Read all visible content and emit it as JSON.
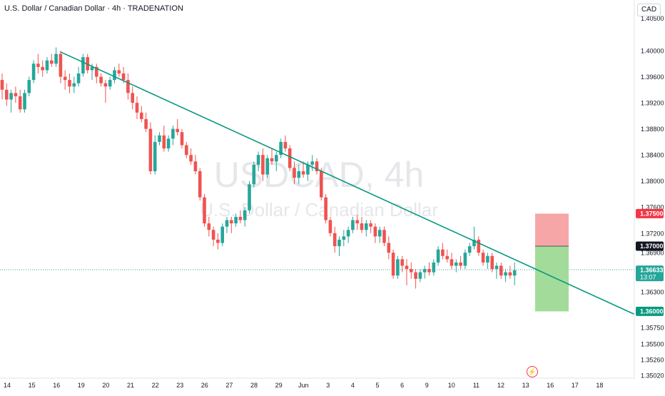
{
  "header": {
    "title": "U.S. Dollar / Canadian Dollar · 4h · TRADENATION"
  },
  "currency_button": "CAD",
  "watermark": {
    "symbol": "USDCAD, 4h",
    "name": "U.S. Dollar / Canadian Dollar"
  },
  "icons": {
    "lightning": "lightning-icon"
  },
  "colors": {
    "up": "#26a69a",
    "down": "#ef5350",
    "trendline": "#089981",
    "stop_zone": "#f7a6a8",
    "target_zone": "#a3dc9a",
    "price_badge": "#26a69a"
  },
  "price_axis": {
    "ticks": [
      "1.40500",
      "1.40000",
      "1.39600",
      "1.39200",
      "1.38800",
      "1.38400",
      "1.38000",
      "1.37600",
      "1.37200",
      "1.36900",
      "1.36300",
      "1.35750",
      "1.35500",
      "1.35260",
      "1.35020"
    ],
    "badges": [
      {
        "label": "1.37500",
        "sub": "",
        "kind": "stop"
      },
      {
        "label": "1.37000",
        "sub": "",
        "kind": "entry"
      },
      {
        "label": "1.36633",
        "sub": "13:07",
        "kind": "current"
      },
      {
        "label": "1.36000",
        "sub": "",
        "kind": "target"
      }
    ]
  },
  "time_axis": {
    "labels": [
      "14",
      "15",
      "16",
      "19",
      "20",
      "21",
      "22",
      "23",
      "26",
      "27",
      "28",
      "29",
      "Jun",
      "3",
      "4",
      "5",
      "6",
      "9",
      "10",
      "11",
      "12",
      "13",
      "16",
      "17",
      "18"
    ]
  },
  "chart_data": {
    "type": "candlestick",
    "title": "U.S. Dollar / Canadian Dollar · 4h · TRADENATION",
    "xlabel": "",
    "ylabel": "",
    "ylim": [
      1.3502,
      1.4065
    ],
    "grid": false,
    "candles_ohlc": [
      [
        1.3955,
        1.3965,
        1.3925,
        1.394
      ],
      [
        1.394,
        1.395,
        1.3915,
        1.3925
      ],
      [
        1.3925,
        1.394,
        1.3905,
        1.3935
      ],
      [
        1.3935,
        1.3945,
        1.392,
        1.393
      ],
      [
        1.393,
        1.394,
        1.3905,
        1.391
      ],
      [
        1.391,
        1.394,
        1.3905,
        1.3935
      ],
      [
        1.3935,
        1.396,
        1.393,
        1.3955
      ],
      [
        1.3955,
        1.3985,
        1.395,
        1.398
      ],
      [
        1.398,
        1.3995,
        1.3965,
        1.3975
      ],
      [
        1.3975,
        1.3985,
        1.396,
        1.397
      ],
      [
        1.397,
        1.399,
        1.3965,
        1.3985
      ],
      [
        1.3985,
        1.3995,
        1.3975,
        1.398
      ],
      [
        1.398,
        1.4005,
        1.3975,
        1.3995
      ],
      [
        1.3995,
        1.4,
        1.395,
        1.396
      ],
      [
        1.396,
        1.397,
        1.394,
        1.3955
      ],
      [
        1.3955,
        1.3965,
        1.3935,
        1.3945
      ],
      [
        1.3945,
        1.396,
        1.3935,
        1.395
      ],
      [
        1.395,
        1.3975,
        1.3945,
        1.3965
      ],
      [
        1.3965,
        1.3995,
        1.396,
        1.399
      ],
      [
        1.399,
        1.3995,
        1.3965,
        1.397
      ],
      [
        1.397,
        1.398,
        1.3955,
        1.3975
      ],
      [
        1.3975,
        1.398,
        1.395,
        1.396
      ],
      [
        1.396,
        1.3965,
        1.3945,
        1.395
      ],
      [
        1.395,
        1.3955,
        1.392,
        1.3945
      ],
      [
        1.3945,
        1.396,
        1.394,
        1.3955
      ],
      [
        1.3955,
        1.3975,
        1.395,
        1.397
      ],
      [
        1.397,
        1.398,
        1.396,
        1.3965
      ],
      [
        1.3965,
        1.3975,
        1.395,
        1.3955
      ],
      [
        1.3955,
        1.3965,
        1.3925,
        1.3935
      ],
      [
        1.3935,
        1.3945,
        1.391,
        1.392
      ],
      [
        1.392,
        1.393,
        1.3895,
        1.3905
      ],
      [
        1.3905,
        1.3915,
        1.389,
        1.3895
      ],
      [
        1.3895,
        1.3905,
        1.3875,
        1.388
      ],
      [
        1.388,
        1.389,
        1.381,
        1.3815
      ],
      [
        1.3815,
        1.387,
        1.381,
        1.386
      ],
      [
        1.386,
        1.3875,
        1.3855,
        1.387
      ],
      [
        1.387,
        1.3885,
        1.3845,
        1.385
      ],
      [
        1.385,
        1.387,
        1.3845,
        1.3865
      ],
      [
        1.3865,
        1.3885,
        1.3855,
        1.388
      ],
      [
        1.388,
        1.3895,
        1.387,
        1.3875
      ],
      [
        1.3875,
        1.388,
        1.385,
        1.3855
      ],
      [
        1.3855,
        1.386,
        1.3835,
        1.384
      ],
      [
        1.384,
        1.385,
        1.3825,
        1.383
      ],
      [
        1.383,
        1.384,
        1.381,
        1.3815
      ],
      [
        1.3815,
        1.382,
        1.377,
        1.3775
      ],
      [
        1.3775,
        1.378,
        1.373,
        1.3735
      ],
      [
        1.3735,
        1.3745,
        1.3715,
        1.3725
      ],
      [
        1.3725,
        1.373,
        1.37,
        1.371
      ],
      [
        1.371,
        1.372,
        1.3695,
        1.3705
      ],
      [
        1.3705,
        1.3735,
        1.37,
        1.373
      ],
      [
        1.373,
        1.3745,
        1.372,
        1.374
      ],
      [
        1.374,
        1.3745,
        1.372,
        1.3735
      ],
      [
        1.3735,
        1.375,
        1.373,
        1.3745
      ],
      [
        1.3745,
        1.3755,
        1.3735,
        1.374
      ],
      [
        1.374,
        1.376,
        1.373,
        1.3755
      ],
      [
        1.3755,
        1.38,
        1.375,
        1.3795
      ],
      [
        1.3795,
        1.383,
        1.379,
        1.3825
      ],
      [
        1.3825,
        1.3845,
        1.3815,
        1.384
      ],
      [
        1.384,
        1.385,
        1.38,
        1.381
      ],
      [
        1.381,
        1.384,
        1.3805,
        1.3835
      ],
      [
        1.3835,
        1.385,
        1.3825,
        1.383
      ],
      [
        1.383,
        1.3845,
        1.3815,
        1.384
      ],
      [
        1.384,
        1.3865,
        1.3835,
        1.386
      ],
      [
        1.386,
        1.387,
        1.3845,
        1.385
      ],
      [
        1.385,
        1.3855,
        1.3815,
        1.382
      ],
      [
        1.382,
        1.383,
        1.3795,
        1.3805
      ],
      [
        1.3805,
        1.3825,
        1.3795,
        1.3815
      ],
      [
        1.3815,
        1.383,
        1.3805,
        1.381
      ],
      [
        1.381,
        1.383,
        1.38,
        1.3825
      ],
      [
        1.3825,
        1.384,
        1.3815,
        1.383
      ],
      [
        1.383,
        1.3835,
        1.381,
        1.3815
      ],
      [
        1.3815,
        1.382,
        1.377,
        1.3775
      ],
      [
        1.3775,
        1.378,
        1.3735,
        1.374
      ],
      [
        1.374,
        1.3745,
        1.3715,
        1.372
      ],
      [
        1.372,
        1.373,
        1.369,
        1.37
      ],
      [
        1.37,
        1.3715,
        1.3685,
        1.371
      ],
      [
        1.371,
        1.3725,
        1.37,
        1.3715
      ],
      [
        1.3715,
        1.373,
        1.3705,
        1.3725
      ],
      [
        1.3725,
        1.3745,
        1.372,
        1.374
      ],
      [
        1.374,
        1.3748,
        1.3725,
        1.3735
      ],
      [
        1.3735,
        1.3745,
        1.372,
        1.3725
      ],
      [
        1.3725,
        1.374,
        1.3715,
        1.3735
      ],
      [
        1.3735,
        1.374,
        1.372,
        1.373
      ],
      [
        1.373,
        1.3735,
        1.3705,
        1.3715
      ],
      [
        1.3715,
        1.373,
        1.3705,
        1.3725
      ],
      [
        1.3725,
        1.373,
        1.37,
        1.3705
      ],
      [
        1.3705,
        1.3715,
        1.368,
        1.369
      ],
      [
        1.369,
        1.3695,
        1.365,
        1.3655
      ],
      [
        1.3655,
        1.3685,
        1.365,
        1.368
      ],
      [
        1.368,
        1.3685,
        1.366,
        1.367
      ],
      [
        1.367,
        1.368,
        1.364,
        1.3665
      ],
      [
        1.3665,
        1.3675,
        1.365,
        1.366
      ],
      [
        1.366,
        1.3665,
        1.3635,
        1.365
      ],
      [
        1.365,
        1.3665,
        1.3645,
        1.366
      ],
      [
        1.366,
        1.367,
        1.365,
        1.3665
      ],
      [
        1.3665,
        1.3675,
        1.3655,
        1.366
      ],
      [
        1.366,
        1.368,
        1.3655,
        1.3675
      ],
      [
        1.3675,
        1.37,
        1.367,
        1.3695
      ],
      [
        1.3695,
        1.3705,
        1.368,
        1.3685
      ],
      [
        1.3685,
        1.3695,
        1.3675,
        1.368
      ],
      [
        1.368,
        1.369,
        1.3665,
        1.367
      ],
      [
        1.367,
        1.368,
        1.366,
        1.3675
      ],
      [
        1.3675,
        1.3685,
        1.3665,
        1.367
      ],
      [
        1.367,
        1.3695,
        1.3665,
        1.369
      ],
      [
        1.369,
        1.3705,
        1.3685,
        1.37
      ],
      [
        1.37,
        1.373,
        1.3695,
        1.371
      ],
      [
        1.371,
        1.3715,
        1.3685,
        1.369
      ],
      [
        1.369,
        1.3695,
        1.367,
        1.3675
      ],
      [
        1.3675,
        1.369,
        1.3665,
        1.3685
      ],
      [
        1.3685,
        1.369,
        1.366,
        1.3665
      ],
      [
        1.3665,
        1.3675,
        1.365,
        1.367
      ],
      [
        1.367,
        1.3675,
        1.365,
        1.3655
      ],
      [
        1.3655,
        1.3665,
        1.3645,
        1.366
      ],
      [
        1.366,
        1.367,
        1.365,
        1.3655
      ],
      [
        1.3655,
        1.3675,
        1.364,
        1.3663
      ]
    ],
    "trendline": [
      {
        "candle": 13,
        "price": 1.3998
      },
      {
        "candle": 118,
        "price": 1.3667
      }
    ],
    "position": {
      "entry": 1.37,
      "stop": 1.375,
      "target": 1.36
    },
    "current_price": 1.36633
  }
}
